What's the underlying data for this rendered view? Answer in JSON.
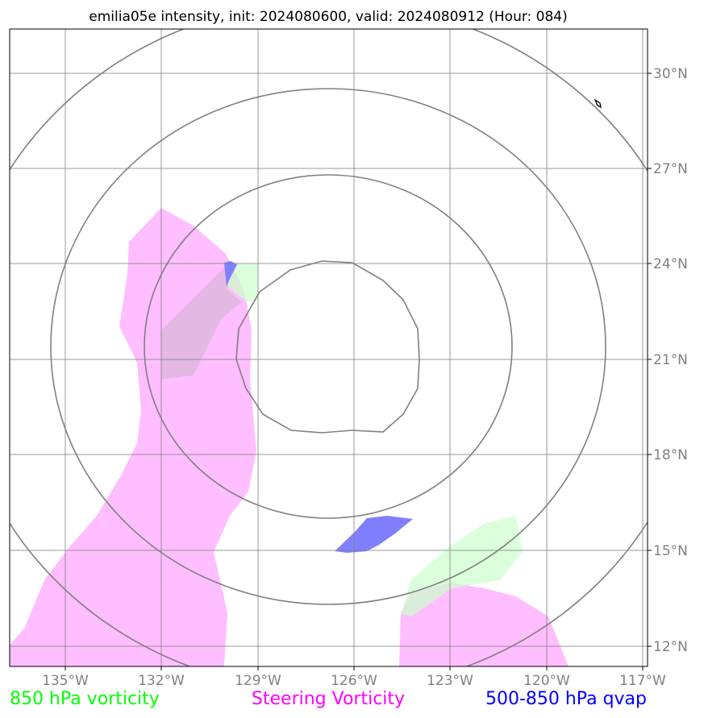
{
  "title": "emilia05e intensity, init: 2024080600, valid: 2024080912 (Hour: 084)",
  "lon_ticks": [
    "135°W",
    "132°W",
    "129°W",
    "126°W",
    "123°W",
    "120°W",
    "117°W"
  ],
  "lat_ticks": [
    "30°N",
    "27°N",
    "24°N",
    "21°N",
    "18°N",
    "15°N",
    "12°N"
  ],
  "legend": {
    "vort850": "850 hPa vorticity",
    "steering": "Steering Vorticity",
    "qvap": "500-850 hPa qvap"
  },
  "colors": {
    "vort850": "#00ff00",
    "steering": "#ff00ff",
    "qvap": "#0000ff",
    "grid": "#808080",
    "vort850_fill": "#ccffcc",
    "steering_fill": "#ffb3ff",
    "qvap_fill": "#7f7fff"
  },
  "map_extent": {
    "lon": [
      -136.8,
      -116.9
    ],
    "lat": [
      11.3,
      31.2
    ]
  },
  "range_rings_center": {
    "lon": -127.0,
    "lat": 21.0
  }
}
